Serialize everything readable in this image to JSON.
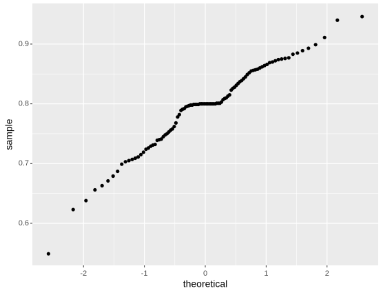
{
  "chart_data": {
    "type": "scatter",
    "xlabel": "theoretical",
    "ylabel": "sample",
    "x": [
      -2.576,
      -2.17,
      -1.96,
      -1.812,
      -1.695,
      -1.598,
      -1.514,
      -1.44,
      -1.372,
      -1.311,
      -1.254,
      -1.2,
      -1.15,
      -1.103,
      -1.058,
      -1.015,
      -0.974,
      -0.935,
      -0.896,
      -0.86,
      -0.824,
      -0.789,
      -0.755,
      -0.722,
      -0.69,
      -0.659,
      -0.628,
      -0.598,
      -0.568,
      -0.539,
      -0.51,
      -0.482,
      -0.454,
      -0.426,
      -0.399,
      -0.372,
      -0.345,
      -0.319,
      -0.292,
      -0.266,
      -0.24,
      -0.215,
      -0.189,
      -0.164,
      -0.138,
      -0.113,
      -0.088,
      -0.063,
      -0.038,
      -0.013,
      0.013,
      0.038,
      0.063,
      0.088,
      0.113,
      0.138,
      0.164,
      0.189,
      0.215,
      0.24,
      0.266,
      0.292,
      0.319,
      0.345,
      0.372,
      0.399,
      0.426,
      0.454,
      0.482,
      0.51,
      0.539,
      0.568,
      0.598,
      0.628,
      0.659,
      0.69,
      0.722,
      0.755,
      0.789,
      0.824,
      0.86,
      0.896,
      0.935,
      0.974,
      1.015,
      1.058,
      1.103,
      1.15,
      1.2,
      1.254,
      1.311,
      1.372,
      1.44,
      1.514,
      1.598,
      1.695,
      1.812,
      1.96,
      2.17,
      2.576
    ],
    "values": [
      0.549,
      0.623,
      0.638,
      0.656,
      0.663,
      0.671,
      0.679,
      0.687,
      0.699,
      0.703,
      0.705,
      0.707,
      0.709,
      0.711,
      0.715,
      0.719,
      0.724,
      0.726,
      0.729,
      0.731,
      0.732,
      0.739,
      0.74,
      0.741,
      0.745,
      0.748,
      0.75,
      0.753,
      0.756,
      0.758,
      0.762,
      0.768,
      0.778,
      0.782,
      0.789,
      0.791,
      0.792,
      0.795,
      0.796,
      0.797,
      0.798,
      0.798,
      0.799,
      0.799,
      0.799,
      0.799,
      0.8,
      0.8,
      0.8,
      0.8,
      0.8,
      0.8,
      0.8,
      0.8,
      0.8,
      0.8,
      0.8,
      0.801,
      0.801,
      0.801,
      0.803,
      0.807,
      0.809,
      0.81,
      0.813,
      0.815,
      0.823,
      0.826,
      0.828,
      0.831,
      0.834,
      0.837,
      0.839,
      0.842,
      0.845,
      0.849,
      0.852,
      0.855,
      0.856,
      0.857,
      0.858,
      0.86,
      0.862,
      0.864,
      0.866,
      0.869,
      0.87,
      0.872,
      0.874,
      0.875,
      0.876,
      0.877,
      0.883,
      0.885,
      0.889,
      0.893,
      0.899,
      0.911,
      0.94,
      0.946
    ],
    "color": "#000000",
    "xlim": [
      -2.84,
      2.84
    ],
    "ylim": [
      0.5296,
      0.968
    ],
    "xticks": [
      -2,
      -1,
      0,
      1,
      2
    ],
    "yticks": [
      0.6,
      0.7,
      0.8,
      0.9
    ],
    "grid": true
  }
}
